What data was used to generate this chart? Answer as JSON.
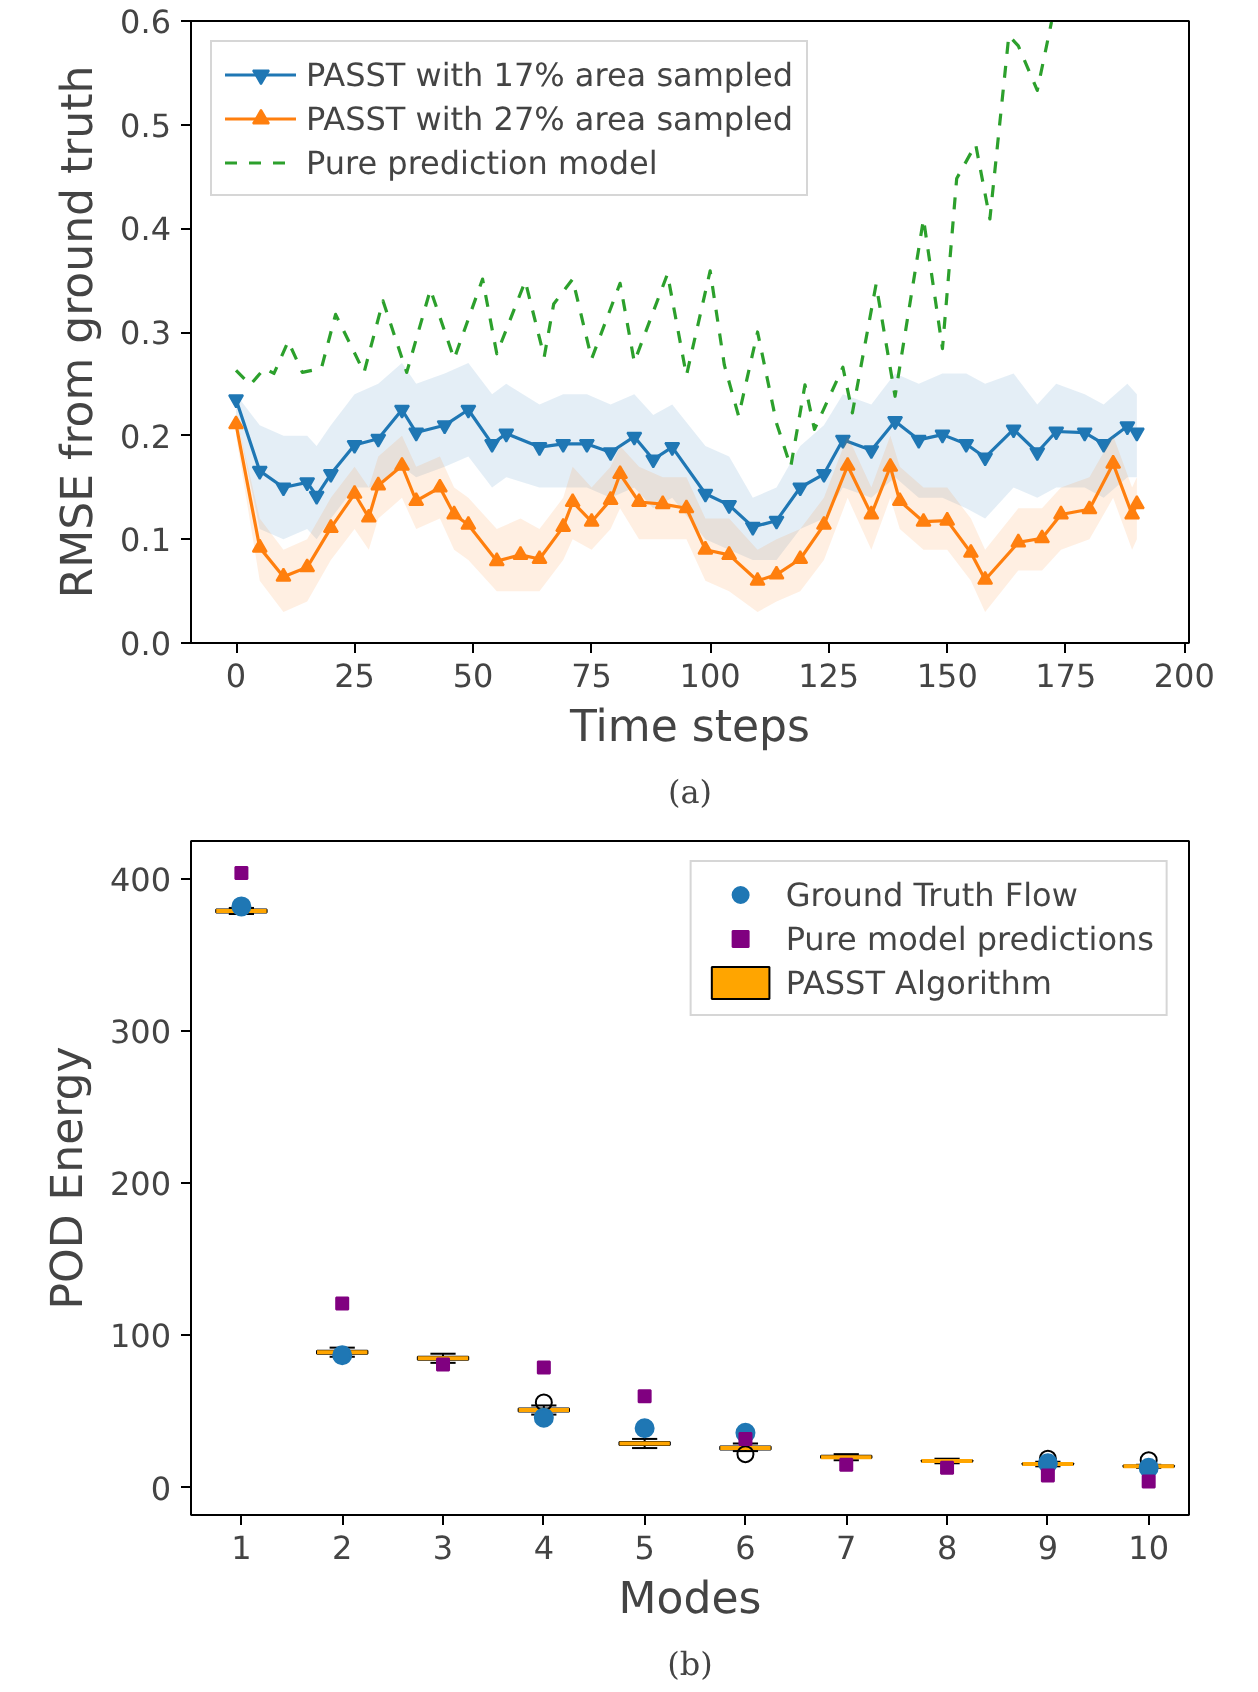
{
  "chart_data": [
    {
      "type": "line",
      "xlabel": "Time steps",
      "ylabel": "RMSE from ground truth",
      "annotations": [
        "(a)"
      ],
      "xlim": [
        -9.5,
        201
      ],
      "ylim": [
        0,
        0.6
      ],
      "xticks": [
        0,
        25,
        50,
        75,
        100,
        125,
        150,
        175,
        200
      ],
      "yticks": [
        {
          "value": 0,
          "label": "0.0"
        },
        0.1,
        0.2,
        0.3,
        0.4,
        0.5,
        0.6
      ],
      "grid": false,
      "legend": "top left",
      "series": [
        {
          "name": "PASST with 17% area sampled",
          "color": "#1f77b4",
          "marker": "triangle_down",
          "line_style": "solid",
          "x": [
            0,
            5,
            10,
            15,
            17,
            20,
            25,
            30,
            35,
            38,
            44,
            49,
            54,
            57,
            64,
            69,
            74,
            79,
            84,
            88,
            92,
            99,
            104,
            109,
            114,
            119,
            124,
            128,
            134,
            139,
            144,
            149,
            154,
            158,
            164,
            169,
            173,
            179,
            183,
            188,
            190
          ],
          "values": [
            0.235,
            0.166,
            0.15,
            0.155,
            0.142,
            0.163,
            0.191,
            0.197,
            0.225,
            0.203,
            0.21,
            0.225,
            0.192,
            0.202,
            0.189,
            0.192,
            0.192,
            0.184,
            0.199,
            0.177,
            0.189,
            0.144,
            0.133,
            0.112,
            0.118,
            0.15,
            0.163,
            0.196,
            0.186,
            0.214,
            0.196,
            0.201,
            0.192,
            0.179,
            0.206,
            0.184,
            0.204,
            0.203,
            0.192,
            0.209,
            0.203
          ],
          "lower": [
            0.22,
            0.11,
            0.1,
            0.11,
            0.1,
            0.12,
            0.15,
            0.15,
            0.17,
            0.16,
            0.17,
            0.18,
            0.15,
            0.16,
            0.15,
            0.15,
            0.15,
            0.14,
            0.15,
            0.13,
            0.14,
            0.1,
            0.09,
            0.08,
            0.08,
            0.11,
            0.12,
            0.15,
            0.14,
            0.16,
            0.14,
            0.14,
            0.13,
            0.12,
            0.15,
            0.14,
            0.15,
            0.15,
            0.14,
            0.16,
            0.16
          ],
          "upper": [
            0.24,
            0.21,
            0.2,
            0.2,
            0.19,
            0.21,
            0.24,
            0.25,
            0.27,
            0.25,
            0.26,
            0.27,
            0.24,
            0.25,
            0.23,
            0.24,
            0.24,
            0.23,
            0.24,
            0.22,
            0.23,
            0.19,
            0.18,
            0.14,
            0.15,
            0.19,
            0.21,
            0.24,
            0.23,
            0.26,
            0.25,
            0.26,
            0.26,
            0.25,
            0.26,
            0.23,
            0.25,
            0.24,
            0.23,
            0.25,
            0.24
          ]
        },
        {
          "name": "PASST with 27% area sampled",
          "color": "#ff7f0e",
          "marker": "triangle",
          "line_style": "solid",
          "x": [
            0,
            5,
            10,
            15,
            20,
            25,
            28,
            30,
            35,
            38,
            43,
            46,
            49,
            55,
            60,
            64,
            69,
            71,
            75,
            79,
            81,
            85,
            90,
            95,
            99,
            104,
            110,
            114,
            119,
            124,
            129,
            134,
            138,
            140,
            145,
            150,
            155,
            158,
            165,
            170,
            174,
            180,
            185,
            189,
            190
          ],
          "values": [
            0.211,
            0.092,
            0.064,
            0.073,
            0.111,
            0.144,
            0.121,
            0.152,
            0.171,
            0.137,
            0.15,
            0.124,
            0.114,
            0.079,
            0.085,
            0.081,
            0.112,
            0.136,
            0.117,
            0.138,
            0.163,
            0.136,
            0.134,
            0.13,
            0.09,
            0.085,
            0.06,
            0.066,
            0.081,
            0.114,
            0.171,
            0.124,
            0.17,
            0.137,
            0.117,
            0.118,
            0.087,
            0.061,
            0.097,
            0.101,
            0.124,
            0.129,
            0.173,
            0.124,
            0.134
          ],
          "lower": [
            0.2,
            0.06,
            0.03,
            0.04,
            0.08,
            0.11,
            0.09,
            0.12,
            0.14,
            0.11,
            0.12,
            0.09,
            0.08,
            0.05,
            0.05,
            0.05,
            0.08,
            0.1,
            0.09,
            0.11,
            0.13,
            0.1,
            0.1,
            0.1,
            0.06,
            0.05,
            0.03,
            0.04,
            0.05,
            0.08,
            0.14,
            0.09,
            0.14,
            0.11,
            0.09,
            0.09,
            0.06,
            0.03,
            0.07,
            0.07,
            0.09,
            0.1,
            0.14,
            0.09,
            0.1
          ],
          "upper": [
            0.22,
            0.12,
            0.09,
            0.1,
            0.14,
            0.17,
            0.15,
            0.18,
            0.2,
            0.17,
            0.18,
            0.15,
            0.14,
            0.11,
            0.12,
            0.11,
            0.14,
            0.17,
            0.15,
            0.17,
            0.19,
            0.17,
            0.16,
            0.16,
            0.12,
            0.12,
            0.09,
            0.1,
            0.11,
            0.14,
            0.2,
            0.15,
            0.2,
            0.17,
            0.15,
            0.15,
            0.12,
            0.09,
            0.13,
            0.13,
            0.15,
            0.16,
            0.2,
            0.15,
            0.16
          ]
        },
        {
          "name": "Pure prediction model",
          "color": "#2ca02c",
          "marker": "none",
          "line_style": "dashed",
          "x": [
            0,
            3,
            6,
            8,
            11,
            14,
            18,
            21,
            27,
            31,
            36,
            41,
            46,
            52,
            55,
            61,
            65,
            67,
            71,
            75,
            81,
            84,
            91,
            95,
            100,
            103,
            106,
            110,
            114,
            117,
            120,
            122,
            128,
            130,
            135,
            139,
            145,
            149,
            152,
            156,
            159,
            163,
            165,
            169,
            172
          ],
          "values": [
            0.263,
            0.249,
            0.265,
            0.26,
            0.291,
            0.261,
            0.265,
            0.317,
            0.261,
            0.33,
            0.261,
            0.341,
            0.274,
            0.351,
            0.279,
            0.349,
            0.276,
            0.327,
            0.351,
            0.274,
            0.347,
            0.271,
            0.356,
            0.258,
            0.359,
            0.268,
            0.219,
            0.3,
            0.212,
            0.17,
            0.249,
            0.206,
            0.266,
            0.222,
            0.346,
            0.238,
            0.409,
            0.284,
            0.448,
            0.481,
            0.409,
            0.586,
            0.576,
            0.533,
            0.599
          ]
        }
      ]
    },
    {
      "type": "box",
      "xlabel": "Modes",
      "ylabel": "POD Energy",
      "annotations": [
        "(b)"
      ],
      "categories": [
        "1",
        "2",
        "3",
        "4",
        "5",
        "6",
        "7",
        "8",
        "9",
        "10"
      ],
      "ylim": [
        -18,
        425
      ],
      "yticks": [
        0,
        100,
        200,
        300,
        400
      ],
      "grid": false,
      "legend": "top right",
      "series": [
        {
          "type": "scatter",
          "name": "Ground Truth Flow",
          "color": "#1f77b4",
          "marker": "circle",
          "x": [
            "1",
            "2",
            "3",
            "4",
            "5",
            "6",
            "7",
            "8",
            "9",
            "10"
          ],
          "values": [
            382,
            87,
            null,
            46,
            39,
            36,
            null,
            null,
            16,
            13
          ]
        },
        {
          "type": "scatter",
          "name": "Pure model predictions",
          "color": "#800080",
          "marker": "square",
          "x": [
            "1",
            "2",
            "3",
            "4",
            "5",
            "6",
            "7",
            "8",
            "9",
            "10"
          ],
          "values": [
            404,
            121,
            81,
            79,
            60,
            32,
            15,
            13,
            8,
            4
          ]
        },
        {
          "type": "box",
          "name": "PASST Algorithm",
          "color": "#ffa500",
          "boxes": [
            {
              "low": 377,
              "q1": 378,
              "median": 379,
              "q3": 380,
              "high": 381
            },
            {
              "low": 86,
              "q1": 88,
              "median": 89,
              "q3": 90,
              "high": 92
            },
            {
              "low": 82,
              "q1": 84,
              "median": 85,
              "q3": 86,
              "high": 88
            },
            {
              "low": 48,
              "q1": 50,
              "median": 51,
              "q3": 52,
              "high": 54,
              "outliers": [
                56
              ]
            },
            {
              "low": 26,
              "q1": 28,
              "median": 29,
              "q3": 30,
              "high": 32
            },
            {
              "low": 24,
              "q1": 25,
              "median": 26,
              "q3": 27,
              "high": 29,
              "outliers": [
                22
              ]
            },
            {
              "low": 18,
              "q1": 19.5,
              "median": 20,
              "q3": 21,
              "high": 22
            },
            {
              "low": 16,
              "q1": 17,
              "median": 17.5,
              "q3": 18,
              "high": 19
            },
            {
              "low": 14,
              "q1": 15,
              "median": 15.5,
              "q3": 16,
              "high": 17,
              "outliers": [
                19
              ]
            },
            {
              "low": 13,
              "q1": 13.5,
              "median": 14,
              "q3": 14.5,
              "high": 15,
              "outliers": [
                18
              ]
            }
          ]
        }
      ]
    }
  ]
}
